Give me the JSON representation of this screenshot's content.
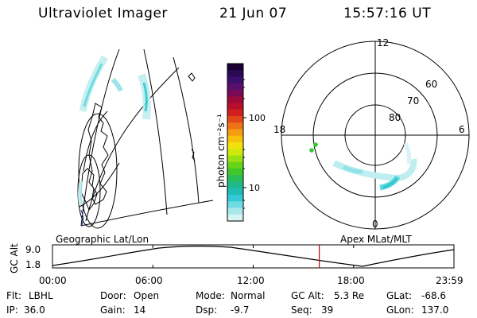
{
  "header": {
    "instrument": "Ultraviolet Imager",
    "date": "21 Jun 07",
    "time": "15:57:16 UT"
  },
  "colorbar": {
    "unit_label": "photon cm⁻²s⁻¹",
    "tick_labels": [
      "100",
      "10"
    ],
    "colors": [
      "#1a0033",
      "#2a0a55",
      "#3b0f6e",
      "#5a0f6b",
      "#7a0a55",
      "#9a0a3a",
      "#b8102a",
      "#d1201e",
      "#e2471a",
      "#ee7316",
      "#f59d12",
      "#f7c20e",
      "#f2e10c",
      "#cfe90e",
      "#9be011",
      "#67d41a",
      "#3fc72b",
      "#2bbe58",
      "#21b98a",
      "#1ebdb6",
      "#33c9d6",
      "#6fdbe3",
      "#a8e8ec",
      "#d8f3f4"
    ]
  },
  "polar_plot": {
    "mlt_labels": {
      "top": "12",
      "left": "18",
      "right": "6",
      "bottom": "0"
    },
    "lat_labels": [
      "60",
      "70",
      "80"
    ]
  },
  "timeline": {
    "left_label": "Geographic Lat/Lon",
    "right_label": "Apex MLat/MLT",
    "y_axis_label": "GC Alt",
    "y_ticks": [
      "9.0",
      "1.8"
    ],
    "x_ticks": [
      "00:00",
      "06:00",
      "12:00",
      "18:00",
      "23:59"
    ],
    "current_time_marker_hours": 15.95
  },
  "status": {
    "flt_label": "Flt:",
    "flt_value": "LBHL",
    "ip_label": "IP:",
    "ip_value": "36.0",
    "door_label": "Door:",
    "door_value": "Open",
    "gain_label": "Gain:",
    "gain_value": "14",
    "mode_label": "Mode:",
    "mode_value": "Normal",
    "dsp_label": "Dsp:",
    "dsp_value": "-9.7",
    "gcalt_label": "GC Alt:",
    "gcalt_value": "5.3 Re",
    "seq_label": "Seq:",
    "seq_value": "39",
    "glat_label": "GLat:",
    "glat_value": "-68.6",
    "glon_label": "GLon:",
    "glon_value": "137.0"
  },
  "colors": {
    "aurora_faint": "#bfeef0",
    "aurora_mid": "#5fd8dc",
    "aurora_bright": "#2ec7d0",
    "green_spot": "#33cc33",
    "marker_red": "#cc0000",
    "coast_blue": "#2233aa"
  }
}
